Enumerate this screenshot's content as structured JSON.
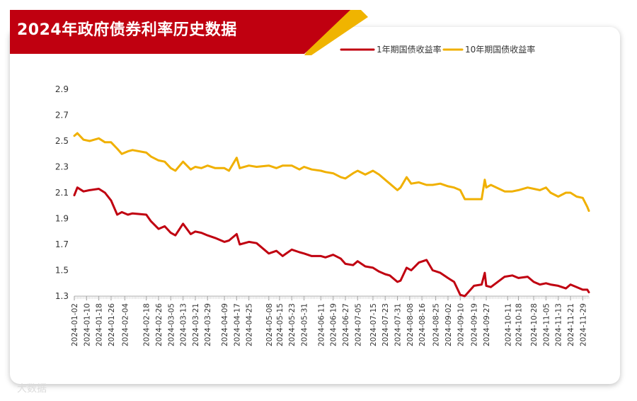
{
  "banner": {
    "title": "2024年政府债券利率历史数据"
  },
  "watermark": "大数据",
  "colors": {
    "banner_red": "#c00010",
    "banner_gold": "#f0b400",
    "series_1y": "#c00010",
    "series_10y": "#f0b000"
  },
  "chart_data": {
    "type": "line",
    "title": "2024年政府债券利率历史数据",
    "xlabel": "",
    "ylabel": "",
    "ylim": [
      1.3,
      2.9
    ],
    "yticks": [
      "1.3",
      "1.5",
      "1.7",
      "1.9",
      "2.1",
      "2.3",
      "2.5",
      "2.7",
      "2.9"
    ],
    "x_range": [
      "2024-01-02",
      "2024-12-03"
    ],
    "xticks": [
      "2024-01-02",
      "2024-01-10",
      "2024-01-18",
      "2024-01-26",
      "2024-02-04",
      "2024-02-18",
      "2024-02-26",
      "2024-03-05",
      "2024-03-13",
      "2024-03-21",
      "2024-03-29",
      "2024-04-09",
      "2024-04-17",
      "2024-04-25",
      "2024-05-08",
      "2024-05-15",
      "2024-05-23",
      "2024-05-31",
      "2024-06-11",
      "2024-06-19",
      "2024-06-27",
      "2024-07-05",
      "2024-07-15",
      "2024-07-23",
      "2024-07-31",
      "2024-08-08",
      "2024-08-16",
      "2024-08-25",
      "2024-09-02",
      "2024-09-10",
      "2024-09-19",
      "2024-09-27",
      "2024-10-11",
      "2024-10-18",
      "2024-10-28",
      "2024-11-05",
      "2024-11-13",
      "2024-11-21",
      "2024-11-29"
    ],
    "grid": false,
    "legend": "top-right",
    "series": [
      {
        "name": "1年期国债收益率",
        "x": [
          "2024-01-02",
          "2024-01-04",
          "2024-01-08",
          "2024-01-12",
          "2024-01-18",
          "2024-01-22",
          "2024-01-26",
          "2024-01-30",
          "2024-02-02",
          "2024-02-06",
          "2024-02-09",
          "2024-02-18",
          "2024-02-21",
          "2024-02-26",
          "2024-03-01",
          "2024-03-05",
          "2024-03-08",
          "2024-03-13",
          "2024-03-18",
          "2024-03-21",
          "2024-03-25",
          "2024-03-29",
          "2024-04-03",
          "2024-04-09",
          "2024-04-12",
          "2024-04-17",
          "2024-04-19",
          "2024-04-25",
          "2024-04-30",
          "2024-05-08",
          "2024-05-13",
          "2024-05-17",
          "2024-05-23",
          "2024-05-28",
          "2024-05-31",
          "2024-06-05",
          "2024-06-11",
          "2024-06-14",
          "2024-06-19",
          "2024-06-24",
          "2024-06-27",
          "2024-07-02",
          "2024-07-05",
          "2024-07-10",
          "2024-07-15",
          "2024-07-19",
          "2024-07-23",
          "2024-07-26",
          "2024-07-31",
          "2024-08-02",
          "2024-08-06",
          "2024-08-09",
          "2024-08-14",
          "2024-08-19",
          "2024-08-23",
          "2024-08-28",
          "2024-09-02",
          "2024-09-06",
          "2024-09-10",
          "2024-09-13",
          "2024-09-19",
          "2024-09-24",
          "2024-09-26",
          "2024-09-27",
          "2024-09-30",
          "2024-10-09",
          "2024-10-14",
          "2024-10-18",
          "2024-10-24",
          "2024-10-28",
          "2024-11-01",
          "2024-11-05",
          "2024-11-08",
          "2024-11-13",
          "2024-11-18",
          "2024-11-21",
          "2024-11-25",
          "2024-11-29",
          "2024-12-02",
          "2024-12-03"
        ],
        "values": [
          2.08,
          2.14,
          2.11,
          2.12,
          2.13,
          2.1,
          2.04,
          1.93,
          1.95,
          1.93,
          1.94,
          1.93,
          1.88,
          1.82,
          1.84,
          1.79,
          1.77,
          1.86,
          1.78,
          1.8,
          1.79,
          1.77,
          1.75,
          1.72,
          1.73,
          1.78,
          1.7,
          1.72,
          1.71,
          1.63,
          1.65,
          1.61,
          1.66,
          1.64,
          1.63,
          1.61,
          1.61,
          1.6,
          1.62,
          1.59,
          1.55,
          1.54,
          1.57,
          1.53,
          1.52,
          1.49,
          1.47,
          1.46,
          1.41,
          1.42,
          1.52,
          1.5,
          1.56,
          1.58,
          1.5,
          1.48,
          1.44,
          1.41,
          1.31,
          1.3,
          1.38,
          1.39,
          1.48,
          1.38,
          1.37,
          1.45,
          1.46,
          1.44,
          1.45,
          1.41,
          1.39,
          1.4,
          1.39,
          1.38,
          1.36,
          1.39,
          1.37,
          1.35,
          1.35,
          1.33
        ]
      },
      {
        "name": "10年期国债收益率",
        "x": [
          "2024-01-02",
          "2024-01-04",
          "2024-01-08",
          "2024-01-12",
          "2024-01-18",
          "2024-01-22",
          "2024-01-26",
          "2024-01-30",
          "2024-02-02",
          "2024-02-06",
          "2024-02-09",
          "2024-02-18",
          "2024-02-21",
          "2024-02-26",
          "2024-03-01",
          "2024-03-05",
          "2024-03-08",
          "2024-03-13",
          "2024-03-18",
          "2024-03-21",
          "2024-03-25",
          "2024-03-29",
          "2024-04-03",
          "2024-04-09",
          "2024-04-12",
          "2024-04-17",
          "2024-04-19",
          "2024-04-25",
          "2024-04-30",
          "2024-05-08",
          "2024-05-13",
          "2024-05-17",
          "2024-05-23",
          "2024-05-28",
          "2024-05-31",
          "2024-06-05",
          "2024-06-11",
          "2024-06-14",
          "2024-06-19",
          "2024-06-24",
          "2024-06-27",
          "2024-07-02",
          "2024-07-05",
          "2024-07-10",
          "2024-07-15",
          "2024-07-19",
          "2024-07-23",
          "2024-07-26",
          "2024-07-31",
          "2024-08-02",
          "2024-08-06",
          "2024-08-09",
          "2024-08-14",
          "2024-08-19",
          "2024-08-23",
          "2024-08-28",
          "2024-09-02",
          "2024-09-06",
          "2024-09-10",
          "2024-09-13",
          "2024-09-19",
          "2024-09-24",
          "2024-09-26",
          "2024-09-27",
          "2024-09-30",
          "2024-10-09",
          "2024-10-14",
          "2024-10-18",
          "2024-10-24",
          "2024-10-28",
          "2024-11-01",
          "2024-11-05",
          "2024-11-08",
          "2024-11-13",
          "2024-11-18",
          "2024-11-21",
          "2024-11-25",
          "2024-11-29",
          "2024-12-02",
          "2024-12-03"
        ],
        "values": [
          2.54,
          2.56,
          2.51,
          2.5,
          2.52,
          2.49,
          2.49,
          2.44,
          2.4,
          2.42,
          2.43,
          2.41,
          2.38,
          2.35,
          2.34,
          2.29,
          2.27,
          2.34,
          2.28,
          2.3,
          2.29,
          2.31,
          2.29,
          2.29,
          2.27,
          2.37,
          2.29,
          2.31,
          2.3,
          2.31,
          2.29,
          2.31,
          2.31,
          2.28,
          2.3,
          2.28,
          2.27,
          2.26,
          2.25,
          2.22,
          2.21,
          2.25,
          2.27,
          2.24,
          2.27,
          2.24,
          2.2,
          2.17,
          2.12,
          2.14,
          2.22,
          2.17,
          2.18,
          2.16,
          2.16,
          2.17,
          2.15,
          2.14,
          2.12,
          2.05,
          2.05,
          2.05,
          2.2,
          2.14,
          2.16,
          2.11,
          2.11,
          2.12,
          2.14,
          2.13,
          2.12,
          2.14,
          2.1,
          2.07,
          2.1,
          2.1,
          2.07,
          2.06,
          1.99,
          1.96
        ]
      }
    ]
  }
}
